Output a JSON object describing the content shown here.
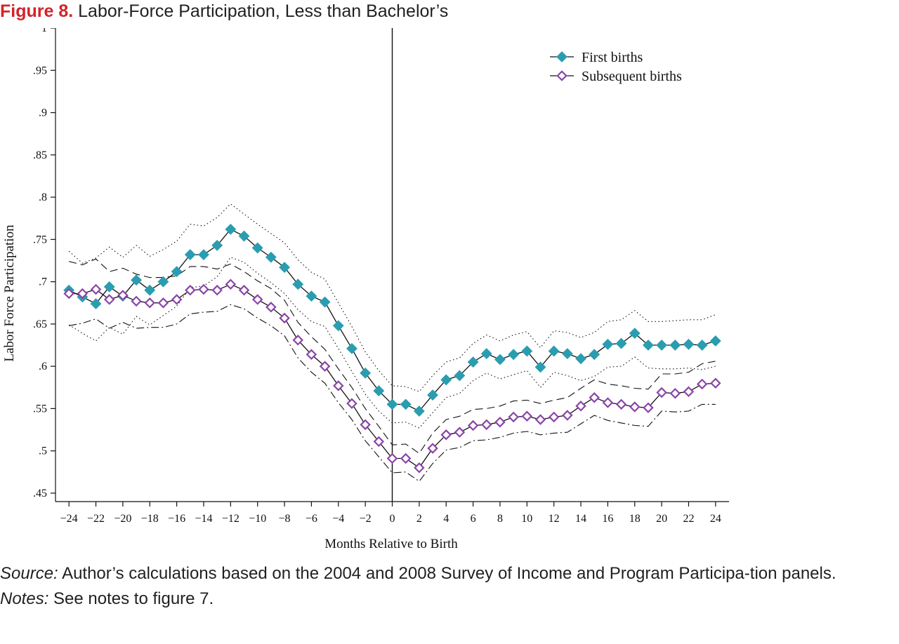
{
  "figure": {
    "label": "Figure 8.",
    "title": "Labor-Force Participation, Less than Bachelor’s"
  },
  "footer": {
    "source_label": "Source:",
    "source_text": "Author’s calculations based on the 2004 and 2008 Survey of Income and Program Participa-tion panels.",
    "notes_label": "Notes:",
    "notes_text": "See notes to figure 7."
  },
  "colors": {
    "first_births": "#2a9db0",
    "subsequent_births": "#8b45a8",
    "line": "#111111"
  },
  "chart_data": {
    "type": "line",
    "title": "",
    "xlabel": "Months Relative to Birth",
    "ylabel": "Labor Force Participation",
    "xlim": [
      -25,
      25
    ],
    "ylim": [
      0.44,
      1.0
    ],
    "x_ticks": [
      -24,
      -22,
      -20,
      -18,
      -16,
      -14,
      -12,
      -10,
      -8,
      -6,
      -4,
      -2,
      0,
      2,
      4,
      6,
      8,
      10,
      12,
      14,
      16,
      18,
      20,
      22,
      24
    ],
    "x_tick_labels": [
      "−24",
      "−22",
      "−20",
      "−18",
      "−16",
      "−14",
      "−12",
      "−10",
      "−8",
      "−6",
      "−4",
      "−2",
      "0",
      "2",
      "4",
      "6",
      "8",
      "10",
      "12",
      "14",
      "16",
      "18",
      "20",
      "22",
      "24"
    ],
    "y_ticks": [
      0.45,
      0.5,
      0.55,
      0.6,
      0.65,
      0.7,
      0.75,
      0.8,
      0.85,
      0.9,
      0.95,
      1.0
    ],
    "y_tick_labels": [
      ".45",
      ".5",
      ".55",
      ".6",
      ".65",
      ".7",
      ".75",
      ".8",
      ".85",
      ".9",
      ".95",
      "1"
    ],
    "vline_x": 0,
    "grid": false,
    "legend_position": "top-right",
    "x": [
      -24,
      -23,
      -22,
      -21,
      -20,
      -19,
      -18,
      -17,
      -16,
      -15,
      -14,
      -13,
      -12,
      -11,
      -10,
      -9,
      -8,
      -7,
      -6,
      -5,
      -4,
      -3,
      -2,
      -1,
      0,
      1,
      2,
      3,
      4,
      5,
      6,
      7,
      8,
      9,
      10,
      11,
      12,
      13,
      14,
      15,
      16,
      17,
      18,
      19,
      20,
      21,
      22,
      23,
      24
    ],
    "series": [
      {
        "name": "First births",
        "marker": "filled-diamond",
        "values": [
          0.69,
          0.682,
          0.674,
          0.694,
          0.683,
          0.702,
          0.69,
          0.7,
          0.712,
          0.732,
          0.732,
          0.743,
          0.762,
          0.754,
          0.74,
          0.729,
          0.717,
          0.697,
          0.683,
          0.676,
          0.648,
          0.621,
          0.592,
          0.571,
          0.555,
          0.555,
          0.547,
          0.566,
          0.584,
          0.589,
          0.605,
          0.615,
          0.608,
          0.614,
          0.618,
          0.599,
          0.618,
          0.615,
          0.609,
          0.614,
          0.626,
          0.627,
          0.639,
          0.625,
          0.625,
          0.625,
          0.626,
          0.625,
          0.63
        ],
        "ci_upper": [
          0.736,
          0.722,
          0.728,
          0.741,
          0.729,
          0.743,
          0.73,
          0.738,
          0.748,
          0.768,
          0.766,
          0.776,
          0.792,
          0.78,
          0.768,
          0.757,
          0.746,
          0.726,
          0.711,
          0.703,
          0.675,
          0.647,
          0.617,
          0.595,
          0.577,
          0.576,
          0.57,
          0.589,
          0.605,
          0.61,
          0.627,
          0.637,
          0.63,
          0.637,
          0.641,
          0.622,
          0.642,
          0.64,
          0.634,
          0.64,
          0.653,
          0.655,
          0.666,
          0.653,
          0.653,
          0.654,
          0.655,
          0.655,
          0.661
        ],
        "ci_lower": [
          0.649,
          0.639,
          0.63,
          0.646,
          0.638,
          0.659,
          0.649,
          0.66,
          0.671,
          0.693,
          0.695,
          0.706,
          0.729,
          0.723,
          0.71,
          0.699,
          0.686,
          0.667,
          0.653,
          0.647,
          0.621,
          0.594,
          0.567,
          0.547,
          0.533,
          0.534,
          0.527,
          0.545,
          0.563,
          0.568,
          0.583,
          0.592,
          0.585,
          0.59,
          0.595,
          0.575,
          0.593,
          0.589,
          0.583,
          0.588,
          0.599,
          0.6,
          0.611,
          0.598,
          0.597,
          0.597,
          0.598,
          0.596,
          0.6
        ]
      },
      {
        "name": "Subsequent births",
        "marker": "hollow-diamond",
        "values": [
          0.686,
          0.686,
          0.691,
          0.679,
          0.684,
          0.677,
          0.675,
          0.675,
          0.679,
          0.69,
          0.691,
          0.69,
          0.697,
          0.69,
          0.679,
          0.67,
          0.657,
          0.631,
          0.614,
          0.6,
          0.577,
          0.556,
          0.531,
          0.511,
          0.491,
          0.491,
          0.48,
          0.503,
          0.519,
          0.522,
          0.53,
          0.531,
          0.534,
          0.54,
          0.541,
          0.537,
          0.54,
          0.542,
          0.553,
          0.563,
          0.557,
          0.555,
          0.552,
          0.551,
          0.569,
          0.568,
          0.57,
          0.579,
          0.58
        ],
        "ci_upper": [
          0.724,
          0.72,
          0.727,
          0.712,
          0.716,
          0.709,
          0.705,
          0.705,
          0.707,
          0.718,
          0.718,
          0.715,
          0.721,
          0.712,
          0.701,
          0.692,
          0.678,
          0.652,
          0.635,
          0.62,
          0.597,
          0.575,
          0.55,
          0.529,
          0.507,
          0.508,
          0.497,
          0.521,
          0.537,
          0.541,
          0.549,
          0.55,
          0.553,
          0.559,
          0.56,
          0.556,
          0.56,
          0.563,
          0.574,
          0.584,
          0.579,
          0.577,
          0.574,
          0.573,
          0.591,
          0.591,
          0.593,
          0.603,
          0.606
        ],
        "ci_lower": [
          0.648,
          0.651,
          0.656,
          0.645,
          0.652,
          0.645,
          0.646,
          0.646,
          0.65,
          0.662,
          0.664,
          0.665,
          0.673,
          0.668,
          0.657,
          0.648,
          0.636,
          0.61,
          0.593,
          0.58,
          0.557,
          0.537,
          0.512,
          0.493,
          0.474,
          0.475,
          0.464,
          0.485,
          0.501,
          0.504,
          0.512,
          0.513,
          0.516,
          0.521,
          0.523,
          0.519,
          0.521,
          0.522,
          0.532,
          0.542,
          0.536,
          0.533,
          0.53,
          0.529,
          0.547,
          0.546,
          0.547,
          0.555,
          0.555
        ]
      }
    ]
  }
}
